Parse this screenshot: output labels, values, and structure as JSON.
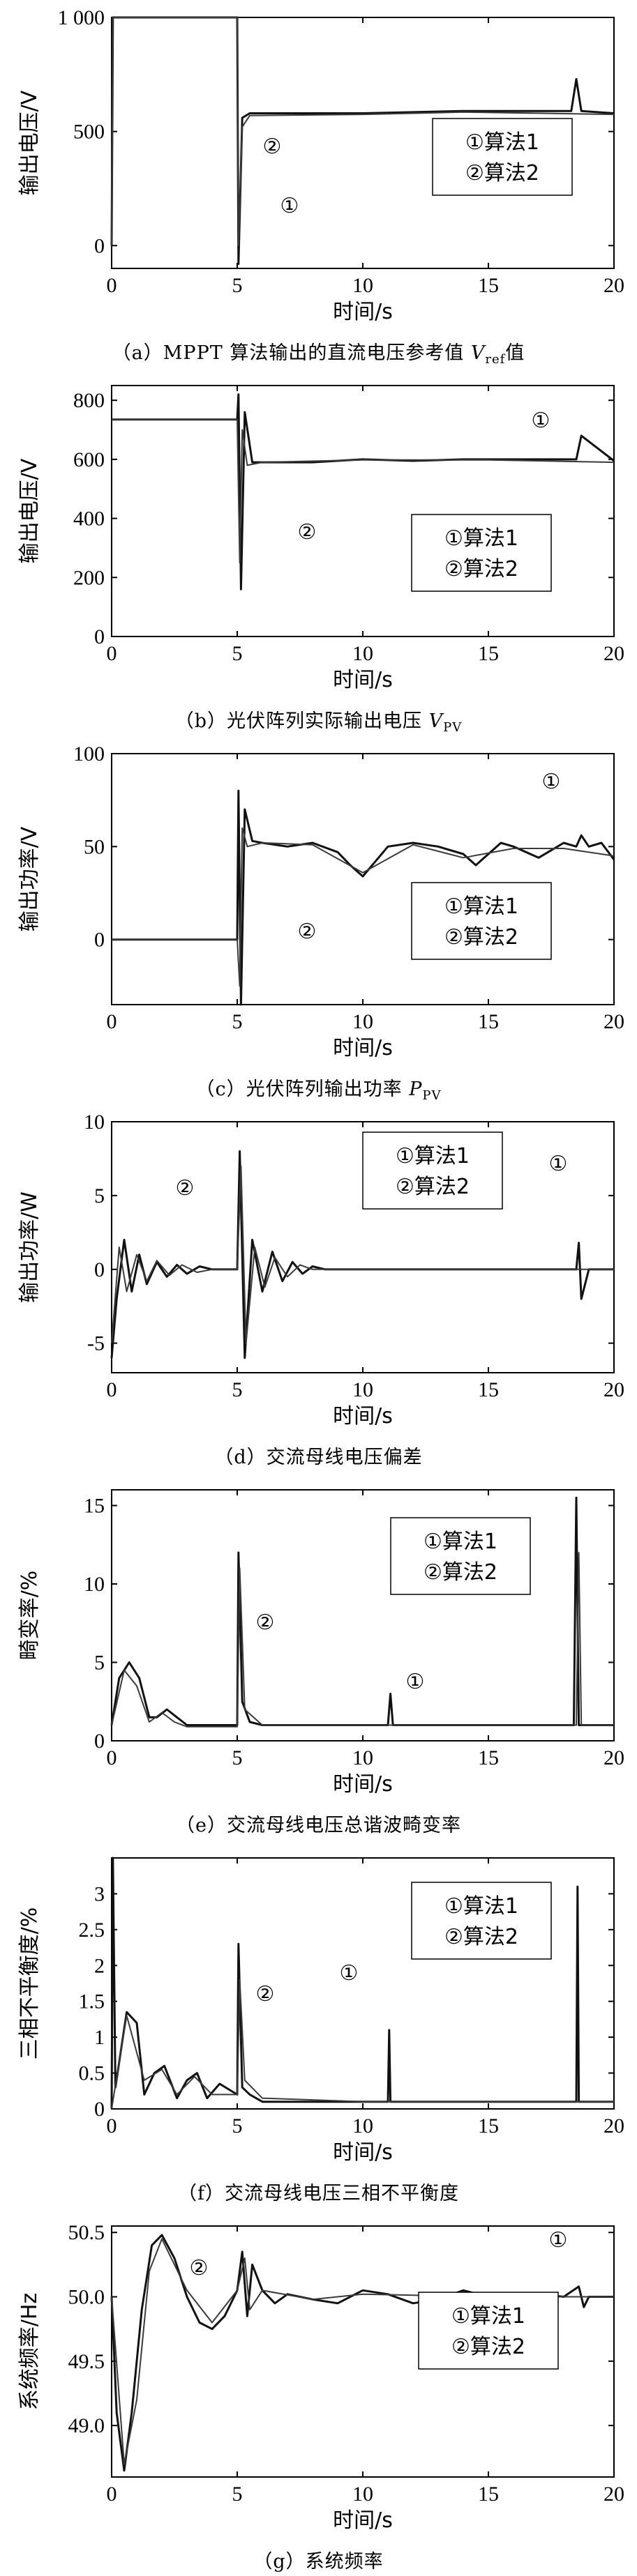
{
  "chart_data": [
    {
      "type": "line",
      "panel": "a",
      "ylabel": "输出电压/V",
      "xlabel": "时间/s",
      "xlim": [
        0,
        20
      ],
      "ylim": [
        -100,
        1000
      ],
      "xticks": [
        "0",
        "5",
        "10",
        "15",
        "20"
      ],
      "yticks": [
        "0",
        "500",
        "1 000"
      ],
      "legend": [
        "①算法1",
        "②算法2"
      ],
      "annotations": [
        "②",
        "①"
      ],
      "series": [
        {
          "name": "①算法1",
          "x": [
            0,
            0.05,
            0.1,
            5,
            5.05,
            5.2,
            5.5,
            10,
            14,
            18.3,
            18.5,
            18.7,
            20
          ],
          "values": [
            0,
            1000,
            1000,
            1000,
            -80,
            560,
            580,
            580,
            590,
            590,
            730,
            590,
            580
          ]
        },
        {
          "name": "②算法2",
          "x": [
            0,
            0.05,
            0.1,
            5,
            5.05,
            5.2,
            5.5,
            10,
            14,
            20
          ],
          "values": [
            0,
            1000,
            1000,
            1000,
            0,
            520,
            570,
            575,
            585,
            575
          ]
        }
      ],
      "caption": {
        "prefix": "（a）MPPT 算法输出的直流电压参考值 ",
        "var": "V",
        "sub": "ref",
        "suffix": "值"
      }
    },
    {
      "type": "line",
      "panel": "b",
      "ylabel": "输出电压/V",
      "xlabel": "时间/s",
      "xlim": [
        0,
        20
      ],
      "ylim": [
        0,
        850
      ],
      "xticks": [
        "0",
        "5",
        "10",
        "15",
        "20"
      ],
      "yticks": [
        "0",
        "200",
        "400",
        "600",
        "800"
      ],
      "legend": [
        "①算法1",
        "②算法2"
      ],
      "annotations": [
        "①",
        "②"
      ],
      "series": [
        {
          "name": "①算法1",
          "x": [
            0,
            5,
            5.05,
            5.15,
            5.3,
            5.6,
            8,
            10,
            12,
            14,
            16,
            18.5,
            18.7,
            20
          ],
          "values": [
            735,
            735,
            820,
            160,
            760,
            590,
            590,
            600,
            595,
            600,
            600,
            600,
            680,
            595
          ]
        },
        {
          "name": "②算法2",
          "x": [
            0,
            5,
            5.1,
            5.2,
            5.4,
            6,
            10,
            15,
            20
          ],
          "values": [
            735,
            735,
            250,
            700,
            580,
            590,
            598,
            598,
            590
          ]
        }
      ],
      "caption": {
        "prefix": "（b）光伏阵列实际输出电压 ",
        "var": "V",
        "sub": "PV",
        "suffix": ""
      }
    },
    {
      "type": "line",
      "panel": "c",
      "ylabel": "输出功率/V",
      "xlabel": "时间/s",
      "xlim": [
        0,
        20
      ],
      "ylim": [
        -35,
        100
      ],
      "xticks": [
        "0",
        "5",
        "10",
        "15",
        "20"
      ],
      "yticks": [
        "0",
        "50",
        "100"
      ],
      "legend": [
        "①算法1",
        "②算法2"
      ],
      "annotations": [
        "①",
        "②"
      ],
      "series": [
        {
          "name": "①算法1",
          "x": [
            0,
            5,
            5.05,
            5.15,
            5.3,
            5.6,
            6,
            7,
            8,
            9,
            9.5,
            10,
            10.5,
            11,
            12,
            13,
            14,
            14.5,
            15,
            15.5,
            16,
            17,
            18,
            18.5,
            18.7,
            19,
            19.5,
            20
          ],
          "values": [
            0,
            0,
            80,
            -35,
            70,
            53,
            52,
            50,
            52,
            47,
            40,
            34,
            42,
            50,
            52,
            50,
            46,
            40,
            46,
            52,
            50,
            44,
            52,
            50,
            56,
            50,
            52,
            43
          ]
        },
        {
          "name": "②算法2",
          "x": [
            0,
            5,
            5.1,
            5.2,
            5.4,
            6,
            8,
            10,
            12,
            14,
            16,
            18,
            20
          ],
          "values": [
            0,
            0,
            -25,
            60,
            50,
            52,
            51,
            36,
            51,
            44,
            49,
            49,
            45
          ]
        }
      ],
      "caption": {
        "prefix": "（c）光伏阵列输出功率 ",
        "var": "P",
        "sub": "PV",
        "suffix": ""
      }
    },
    {
      "type": "line",
      "panel": "d",
      "ylabel": "输出功率/W",
      "xlabel": "时间/s",
      "xlim": [
        0,
        20
      ],
      "ylim": [
        -7,
        10
      ],
      "xticks": [
        "0",
        "5",
        "10",
        "15",
        "20"
      ],
      "yticks": [
        "-5",
        "0",
        "5",
        "10"
      ],
      "legend": [
        "①算法1",
        "②算法2"
      ],
      "annotations": [
        "②",
        "①"
      ],
      "series": [
        {
          "name": "①算法1",
          "x": [
            0,
            0.2,
            0.5,
            0.8,
            1.1,
            1.4,
            1.8,
            2.2,
            2.6,
            3,
            3.5,
            4,
            4.5,
            5,
            5.1,
            5.3,
            5.6,
            6,
            6.4,
            6.8,
            7.2,
            7.6,
            8,
            8.5,
            9,
            10,
            12,
            14,
            16,
            18,
            18.5,
            18.6,
            18.7,
            19,
            20
          ],
          "values": [
            -6,
            -2,
            2,
            -1.5,
            1,
            -1,
            0.5,
            -0.5,
            0.3,
            -0.3,
            0.2,
            0,
            0,
            0,
            8,
            -6,
            2,
            -1.5,
            1.2,
            -0.8,
            0.5,
            -0.3,
            0.2,
            0,
            0,
            0,
            0,
            0,
            0,
            0,
            0,
            1.8,
            -2,
            0,
            0
          ]
        },
        {
          "name": "②算法2",
          "x": [
            0,
            0.3,
            0.6,
            1,
            1.4,
            1.8,
            2.3,
            2.8,
            3.4,
            4,
            5,
            5.15,
            5.35,
            5.7,
            6.1,
            6.5,
            7,
            7.5,
            8,
            9,
            10,
            14,
            20
          ],
          "values": [
            -5,
            1.5,
            -1.5,
            1,
            -0.8,
            0.6,
            -0.4,
            0.3,
            -0.2,
            0,
            0,
            7,
            -5,
            1.5,
            -1.2,
            0.8,
            -0.5,
            0.3,
            0,
            0,
            0,
            0,
            0
          ]
        }
      ],
      "caption": {
        "prefix": "（d）交流母线电压偏差",
        "var": "",
        "sub": "",
        "suffix": ""
      }
    },
    {
      "type": "line",
      "panel": "e",
      "ylabel": "畸变率/%",
      "xlabel": "时间/s",
      "xlim": [
        0,
        20
      ],
      "ylim": [
        0,
        16
      ],
      "xticks": [
        "0",
        "5",
        "10",
        "15",
        "20"
      ],
      "yticks": [
        "0",
        "5",
        "10",
        "15"
      ],
      "legend": [
        "①算法1",
        "②算法2"
      ],
      "annotations": [
        "②",
        "①"
      ],
      "series": [
        {
          "name": "①算法1",
          "x": [
            0,
            0.3,
            0.7,
            1.1,
            1.5,
            1.8,
            2.2,
            2.6,
            3,
            4,
            5,
            5.05,
            5.2,
            5.5,
            6,
            8,
            10,
            11,
            11.1,
            11.2,
            14,
            18,
            18.4,
            18.5,
            18.6,
            19,
            20
          ],
          "values": [
            1,
            4,
            5,
            4,
            1.5,
            1.5,
            2,
            1.5,
            1,
            1,
            1,
            12,
            2.5,
            1.2,
            1,
            1,
            1,
            1,
            3,
            1,
            1,
            1,
            1,
            15.5,
            1,
            1,
            1
          ]
        },
        {
          "name": "②算法2",
          "x": [
            0,
            0.5,
            1,
            1.5,
            2,
            2.5,
            3,
            5,
            5.1,
            5.3,
            6,
            10,
            15,
            18.5,
            18.6,
            18.7,
            20
          ],
          "values": [
            1,
            4.5,
            3.5,
            1.2,
            1.8,
            1.2,
            0.9,
            0.9,
            11,
            2,
            1,
            1,
            1,
            1,
            12,
            1,
            1
          ]
        }
      ],
      "caption": {
        "prefix": "（e）交流母线电压总谐波畸变率",
        "var": "",
        "sub": "",
        "suffix": ""
      }
    },
    {
      "type": "line",
      "panel": "f",
      "ylabel": "三相不平衡度/%",
      "xlabel": "时间/s",
      "xlim": [
        0,
        20
      ],
      "ylim": [
        0,
        3.5
      ],
      "xticks": [
        "0",
        "5",
        "10",
        "15",
        "20"
      ],
      "yticks": [
        "0",
        "0.5",
        "1",
        "1.5",
        "2",
        "2.5",
        "3"
      ],
      "legend": [
        "①算法1",
        "②算法2"
      ],
      "annotations": [
        "②",
        "①"
      ],
      "series": [
        {
          "name": "①算法1",
          "x": [
            0,
            0.05,
            0.15,
            0.6,
            1,
            1.3,
            1.7,
            2.1,
            2.6,
            3,
            3.4,
            3.8,
            4.3,
            5,
            5.05,
            5.2,
            5.5,
            6,
            8,
            10,
            11,
            11.05,
            11.1,
            14,
            18,
            18.5,
            18.55,
            18.6,
            19.5,
            20
          ],
          "values": [
            0,
            3.5,
            0.3,
            1.35,
            1.2,
            0.2,
            0.5,
            0.6,
            0.15,
            0.4,
            0.5,
            0.15,
            0.35,
            0.2,
            2.3,
            0.3,
            0.2,
            0.1,
            0.1,
            0.1,
            0.1,
            1.1,
            0.1,
            0.1,
            0.1,
            0.1,
            3.1,
            0.1,
            0.1,
            0.1
          ]
        },
        {
          "name": "②算法2",
          "x": [
            0,
            0.6,
            1.3,
            2,
            2.6,
            3.3,
            4,
            5,
            5.1,
            5.3,
            6,
            10,
            15,
            20
          ],
          "values": [
            0,
            1.3,
            0.4,
            0.55,
            0.2,
            0.45,
            0.2,
            0.2,
            1.8,
            0.4,
            0.15,
            0.1,
            0.1,
            0.1
          ]
        }
      ],
      "caption": {
        "prefix": "（f）交流母线电压三相不平衡度",
        "var": "",
        "sub": "",
        "suffix": ""
      }
    },
    {
      "type": "line",
      "panel": "g",
      "ylabel": "系统频率/Hz",
      "xlabel": "时间/s",
      "xlim": [
        0,
        20
      ],
      "ylim": [
        48.6,
        50.55
      ],
      "xticks": [
        "0",
        "5",
        "10",
        "15",
        "20"
      ],
      "yticks": [
        "49.0",
        "49.5",
        "50.0",
        "50.5"
      ],
      "legend": [
        "①算法1",
        "②算法2"
      ],
      "annotations": [
        "②",
        "①"
      ],
      "series": [
        {
          "name": "①算法1",
          "x": [
            0,
            0.2,
            0.5,
            0.8,
            1.2,
            1.6,
            2,
            2.5,
            3,
            3.5,
            4,
            4.5,
            5,
            5.2,
            5.4,
            5.6,
            6,
            6.5,
            7,
            8,
            9,
            10,
            11,
            12,
            13,
            14,
            15,
            16,
            17,
            18,
            18.6,
            18.8,
            19,
            20
          ],
          "values": [
            50,
            49.1,
            48.65,
            49.1,
            49.9,
            50.4,
            50.48,
            50.3,
            50.0,
            49.8,
            49.75,
            49.85,
            50.05,
            50.35,
            49.85,
            50.25,
            50.05,
            49.95,
            50.02,
            49.98,
            49.95,
            50.05,
            50.02,
            49.95,
            49.98,
            50.05,
            50.0,
            49.95,
            50.02,
            50.0,
            50.08,
            49.92,
            50.0,
            50.0
          ]
        },
        {
          "name": "②算法2",
          "x": [
            0,
            0.5,
            1,
            1.5,
            2,
            3,
            4,
            5,
            5.3,
            5.5,
            6,
            8,
            10,
            15,
            20
          ],
          "values": [
            50,
            48.7,
            49.2,
            50.2,
            50.45,
            50.05,
            49.8,
            50.05,
            50.3,
            49.9,
            50.05,
            49.98,
            50.02,
            50.0,
            50.0
          ]
        }
      ],
      "caption": {
        "prefix": "（g）系统频率",
        "var": "",
        "sub": "",
        "suffix": ""
      }
    }
  ],
  "colors": {
    "ink": "#000000",
    "series1": "#111111",
    "series2": "#3a3a3a",
    "background": "#ffffff"
  }
}
